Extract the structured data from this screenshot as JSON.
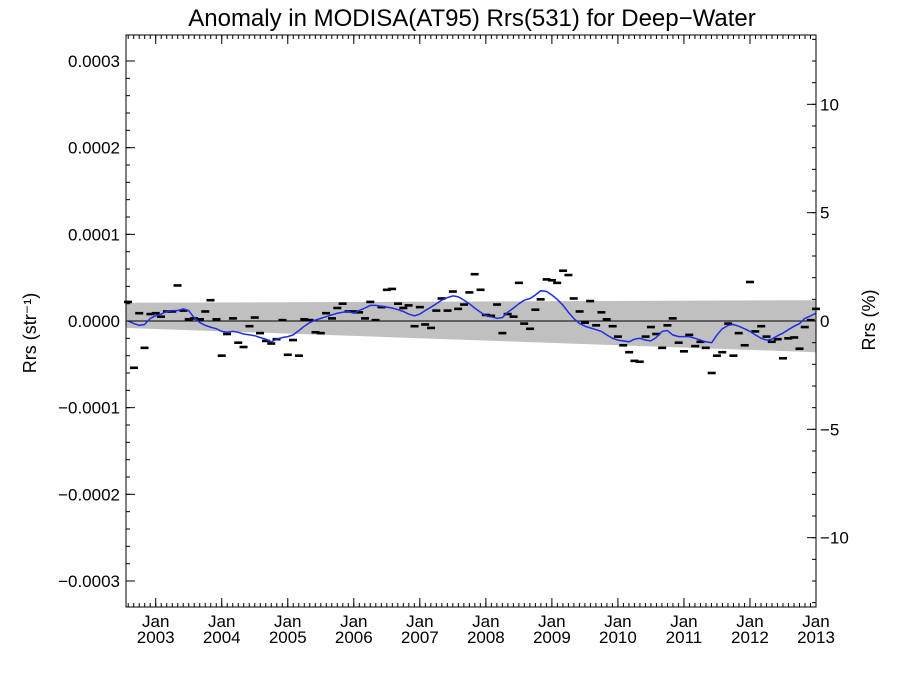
{
  "chart_data": {
    "type": "line",
    "title": "Anomaly in MODISA(AT95) Rrs(531) for Deep−Water",
    "ylabel_left": "Rrs (str⁻¹)",
    "ylabel_right": "Rrs (%)",
    "xlabel": "",
    "xlim": [
      2002.55,
      2013.0
    ],
    "ylim": [
      -0.00033,
      0.00033
    ],
    "ylim_right": [
      -13.2,
      13.2
    ],
    "grid": false,
    "x_ticks": [
      {
        "x": 2003.0,
        "month": "Jan",
        "year": "2003"
      },
      {
        "x": 2004.0,
        "month": "Jan",
        "year": "2004"
      },
      {
        "x": 2005.0,
        "month": "Jan",
        "year": "2005"
      },
      {
        "x": 2006.0,
        "month": "Jan",
        "year": "2006"
      },
      {
        "x": 2007.0,
        "month": "Jan",
        "year": "2007"
      },
      {
        "x": 2008.0,
        "month": "Jan",
        "year": "2008"
      },
      {
        "x": 2009.0,
        "month": "Jan",
        "year": "2009"
      },
      {
        "x": 2010.0,
        "month": "Jan",
        "year": "2010"
      },
      {
        "x": 2011.0,
        "month": "Jan",
        "year": "2011"
      },
      {
        "x": 2012.0,
        "month": "Jan",
        "year": "2012"
      },
      {
        "x": 2013.0,
        "month": "Jan",
        "year": "2013"
      }
    ],
    "y_ticks_left": [
      {
        "v": 0.0003,
        "label": "0.0003"
      },
      {
        "v": 0.0002,
        "label": "0.0002"
      },
      {
        "v": 0.0001,
        "label": "0.0001"
      },
      {
        "v": 0.0,
        "label": "0.0000"
      },
      {
        "v": -0.0001,
        "label": "−0.0001"
      },
      {
        "v": -0.0002,
        "label": "−0.0002"
      },
      {
        "v": -0.0003,
        "label": "−0.0003"
      }
    ],
    "y_ticks_right": [
      {
        "v": 10,
        "label": "10"
      },
      {
        "v": 5,
        "label": "5"
      },
      {
        "v": 0,
        "label": "0"
      },
      {
        "v": -5,
        "label": "−5"
      },
      {
        "v": -10,
        "label": "−10"
      }
    ],
    "band": {
      "x": [
        2002.55,
        2013.0
      ],
      "upper": [
        2.1e-05,
        2.4e-05
      ],
      "lower": [
        -8e-06,
        -3.6e-05
      ],
      "color": "#c0c0c0"
    },
    "zero_line": 0.0,
    "series": [
      {
        "kind": "monthly-anomaly-dash",
        "color": "#000000",
        "x": [
          2002.58,
          2002.67,
          2002.75,
          2002.83,
          2002.92,
          2003.0,
          2003.08,
          2003.17,
          2003.25,
          2003.33,
          2003.42,
          2003.5,
          2003.58,
          2003.67,
          2003.75,
          2003.83,
          2003.92,
          2004.0,
          2004.08,
          2004.17,
          2004.25,
          2004.33,
          2004.42,
          2004.5,
          2004.58,
          2004.67,
          2004.75,
          2004.83,
          2004.92,
          2005.0,
          2005.08,
          2005.17,
          2005.25,
          2005.33,
          2005.42,
          2005.5,
          2005.58,
          2005.67,
          2005.75,
          2005.83,
          2005.92,
          2006.0,
          2006.08,
          2006.17,
          2006.25,
          2006.33,
          2006.42,
          2006.5,
          2006.58,
          2006.67,
          2006.75,
          2006.83,
          2006.92,
          2007.0,
          2007.08,
          2007.17,
          2007.25,
          2007.33,
          2007.42,
          2007.5,
          2007.58,
          2007.67,
          2007.75,
          2007.83,
          2007.92,
          2008.0,
          2008.08,
          2008.17,
          2008.25,
          2008.33,
          2008.42,
          2008.5,
          2008.58,
          2008.67,
          2008.75,
          2008.83,
          2008.92,
          2009.0,
          2009.08,
          2009.17,
          2009.25,
          2009.33,
          2009.42,
          2009.5,
          2009.58,
          2009.67,
          2009.75,
          2009.83,
          2009.92,
          2010.0,
          2010.08,
          2010.17,
          2010.25,
          2010.33,
          2010.42,
          2010.5,
          2010.58,
          2010.67,
          2010.75,
          2010.83,
          2010.92,
          2011.0,
          2011.08,
          2011.17,
          2011.25,
          2011.33,
          2011.42,
          2011.5,
          2011.58,
          2011.67,
          2011.75,
          2011.83,
          2011.92,
          2012.0,
          2012.08,
          2012.17,
          2012.25,
          2012.33,
          2012.42,
          2012.5,
          2012.58,
          2012.67,
          2012.75,
          2012.83,
          2012.92,
          2013.0
        ],
        "values": [
          2.2e-05,
          -5.4e-05,
          9e-06,
          -3.1e-05,
          8e-06,
          9e-06,
          5e-06,
          1.1e-05,
          1.1e-05,
          4.1e-05,
          1.2e-05,
          2e-06,
          3e-06,
          2e-06,
          1.1e-05,
          2.4e-05,
          2e-06,
          -4e-05,
          -1.5e-05,
          3e-06,
          -2.5e-05,
          -3e-05,
          -6e-06,
          4e-06,
          -1.4e-05,
          -2.3e-05,
          -2.6e-05,
          -2.1e-05,
          1e-06,
          -3.9e-05,
          -2.2e-05,
          -4e-05,
          2e-06,
          1e-06,
          -1.3e-05,
          -1.4e-05,
          9e-06,
          3e-06,
          1.5e-05,
          2e-05,
          1.1e-05,
          1.1e-05,
          1e-05,
          3e-06,
          2.2e-05,
          1e-06,
          1.6e-05,
          3.6e-05,
          3.7e-05,
          2e-05,
          1.5e-05,
          1.8e-05,
          -6e-06,
          1.6e-05,
          -4e-06,
          -8e-06,
          1.2e-05,
          2.6e-05,
          1.2e-05,
          3.4e-05,
          1.4e-05,
          1.9e-05,
          3.3e-05,
          5.4e-05,
          3.6e-05,
          7e-06,
          6e-06,
          1.9e-05,
          -1.4e-05,
          8e-06,
          5e-06,
          4.4e-05,
          -3e-06,
          -9e-06,
          1.3e-05,
          2.5e-05,
          4.8e-05,
          4.7e-05,
          4.4e-05,
          5.8e-05,
          5.3e-05,
          2.6e-05,
          1.1e-05,
          -2e-06,
          2.3e-05,
          -5e-06,
          1e-05,
          2e-06,
          -6e-06,
          -1.8e-05,
          -2.8e-05,
          -3.6e-05,
          -4.6e-05,
          -4.7e-05,
          -1.8e-05,
          -7e-06,
          -1.5e-05,
          -3.1e-05,
          -5e-06,
          3e-06,
          -2.5e-05,
          -3.5e-05,
          -1.6e-05,
          -2.9e-05,
          -2.4e-05,
          -3.1e-05,
          -6e-05,
          -4e-05,
          -3.6e-05,
          -3e-06,
          -4e-05,
          -1.4e-05,
          -2.8e-05,
          4.5e-05,
          -1.2e-05,
          -6e-06,
          -1.8e-05,
          -2.4e-05,
          -2.1e-05,
          -4.3e-05,
          -2e-05,
          -1.9e-05,
          -3.2e-05,
          -7e-06,
          1e-06,
          1.4e-05
        ]
      },
      {
        "kind": "running-mean",
        "color": "#1f2fe0",
        "x": [
          2002.58,
          2002.67,
          2002.75,
          2002.83,
          2002.92,
          2003.0,
          2003.08,
          2003.17,
          2003.25,
          2003.33,
          2003.42,
          2003.5,
          2003.58,
          2003.67,
          2003.75,
          2003.83,
          2003.92,
          2004.0,
          2004.08,
          2004.17,
          2004.25,
          2004.33,
          2004.42,
          2004.5,
          2004.58,
          2004.67,
          2004.75,
          2004.83,
          2004.92,
          2005.0,
          2005.08,
          2005.17,
          2005.25,
          2005.33,
          2005.42,
          2005.5,
          2005.58,
          2005.67,
          2005.75,
          2005.83,
          2005.92,
          2006.0,
          2006.08,
          2006.17,
          2006.25,
          2006.33,
          2006.42,
          2006.5,
          2006.58,
          2006.67,
          2006.75,
          2006.83,
          2006.92,
          2007.0,
          2007.08,
          2007.17,
          2007.25,
          2007.33,
          2007.42,
          2007.5,
          2007.58,
          2007.67,
          2007.75,
          2007.83,
          2007.92,
          2008.0,
          2008.08,
          2008.17,
          2008.25,
          2008.33,
          2008.42,
          2008.5,
          2008.58,
          2008.67,
          2008.75,
          2008.83,
          2008.92,
          2009.0,
          2009.08,
          2009.17,
          2009.25,
          2009.33,
          2009.42,
          2009.5,
          2009.58,
          2009.67,
          2009.75,
          2009.83,
          2009.92,
          2010.0,
          2010.08,
          2010.17,
          2010.25,
          2010.33,
          2010.42,
          2010.5,
          2010.58,
          2010.67,
          2010.75,
          2010.83,
          2010.92,
          2011.0,
          2011.08,
          2011.17,
          2011.25,
          2011.33,
          2011.42,
          2011.5,
          2011.58,
          2011.67,
          2011.75,
          2011.83,
          2011.92,
          2012.0,
          2012.08,
          2012.17,
          2012.25,
          2012.33,
          2012.42,
          2012.5,
          2012.58,
          2012.67,
          2012.75,
          2012.83,
          2012.92,
          2013.0
        ],
        "values": [
          0.0,
          -3e-06,
          -5e-06,
          -4e-06,
          3e-06,
          6e-06,
          8e-06,
          1.1e-05,
          1.2e-05,
          1.2e-05,
          1.4e-05,
          1.2e-05,
          4e-06,
          -2e-06,
          -5e-06,
          -7e-06,
          -9e-06,
          -1.2e-05,
          -1.3e-05,
          -1.2e-05,
          -1.3e-05,
          -1.5e-05,
          -1.6e-05,
          -1.7e-05,
          -1.9e-05,
          -2.1e-05,
          -2.4e-05,
          -2.1e-05,
          -1.9e-05,
          -1.8e-05,
          -1.6e-05,
          -1.1e-05,
          -6e-06,
          -2e-06,
          1e-06,
          3e-06,
          5e-06,
          7e-06,
          9e-06,
          1e-05,
          1.1e-05,
          9e-06,
          1.2e-05,
          1.5e-05,
          1.8e-05,
          1.8e-05,
          1.7e-05,
          1.6e-05,
          1.5e-05,
          1.3e-05,
          1.1e-05,
          8e-06,
          6e-06,
          8e-06,
          1.2e-05,
          1.6e-05,
          2e-05,
          2.4e-05,
          2.7e-05,
          2.9e-05,
          2.8e-05,
          2.4e-05,
          2e-05,
          1.5e-05,
          1e-05,
          6e-06,
          5e-06,
          3e-06,
          4e-06,
          1e-05,
          1.5e-05,
          2e-05,
          2.4e-05,
          2.6e-05,
          3e-05,
          3.5e-05,
          3.4e-05,
          3e-05,
          2.5e-05,
          1.8e-05,
          1e-05,
          3e-06,
          -3e-06,
          -6e-06,
          -8e-06,
          -1e-05,
          -1.2e-05,
          -1.6e-05,
          -2e-05,
          -2.2e-05,
          -2.3e-05,
          -2.4e-05,
          -2.1e-05,
          -2e-05,
          -2.2e-05,
          -2.3e-05,
          -1.9e-05,
          -1.2e-05,
          -1.1e-05,
          -1.6e-05,
          -1.8e-05,
          -1.8e-05,
          -1.8e-05,
          -2e-05,
          -2.2e-05,
          -2.4e-05,
          -2.5e-05,
          -1.6e-05,
          -9e-06,
          -5e-06,
          -4e-06,
          -6e-06,
          -9e-06,
          -1.2e-05,
          -1.6e-05,
          -2e-05,
          -2.2e-05,
          -2.1e-05,
          -1.7e-05,
          -1.4e-05,
          -1e-05,
          -6e-06,
          -3e-06,
          3e-06,
          6e-06,
          9e-06
        ]
      }
    ]
  }
}
